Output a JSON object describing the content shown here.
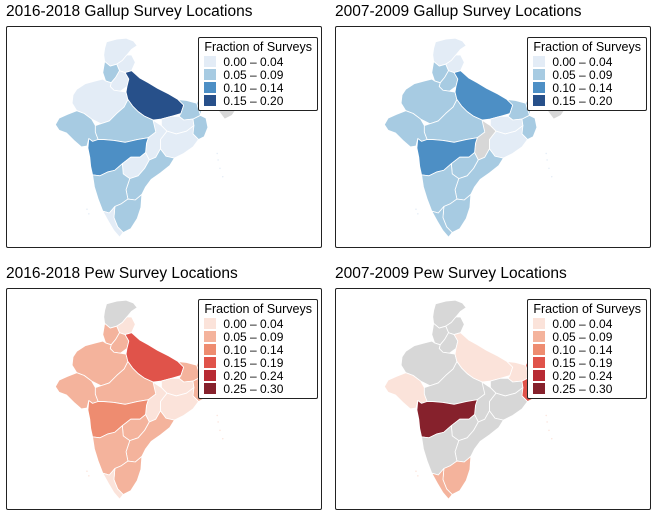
{
  "legend_title": "Fraction of Surveys",
  "no_data_color": "#d7d7d7",
  "map_data": [
    {
      "title": "2016-2018 Gallup Survey Locations",
      "legend": [
        {
          "label": "0.00 – 0.04",
          "color": "#e3ecf6"
        },
        {
          "label": "0.05 – 0.09",
          "color": "#a7cbe2"
        },
        {
          "label": "0.10 – 0.14",
          "color": "#4d8fc5"
        },
        {
          "label": "0.15 – 0.20",
          "color": "#27508a"
        }
      ],
      "regions": {
        "jk": 0,
        "ne": -1,
        "hp": 0,
        "pb": 1,
        "hr": 0,
        "up": 3,
        "rj": 0,
        "gj": 1,
        "mp": 1,
        "bh": 1,
        "wb": 1,
        "jh": 0,
        "od": 0,
        "cg": 0,
        "mh": 2,
        "tg": 0,
        "ap": 1,
        "ka": 1,
        "tn": 1,
        "kl": 0
      }
    },
    {
      "title": "2007-2009 Gallup Survey Locations",
      "legend": [
        {
          "label": "0.00 – 0.04",
          "color": "#e3ecf6"
        },
        {
          "label": "0.05 – 0.09",
          "color": "#a7cbe2"
        },
        {
          "label": "0.10 – 0.14",
          "color": "#4d8fc5"
        },
        {
          "label": "0.15 – 0.20",
          "color": "#27508a"
        }
      ],
      "regions": {
        "jk": 0,
        "ne": -1,
        "hp": 0,
        "pb": 1,
        "hr": 1,
        "up": 2,
        "rj": 1,
        "gj": 1,
        "mp": 1,
        "bh": 1,
        "wb": 1,
        "jh": 0,
        "od": 0,
        "cg": -1,
        "mh": 2,
        "tg": 1,
        "ap": 1,
        "ka": 1,
        "tn": 1,
        "kl": 1
      }
    },
    {
      "title": "2016-2018 Pew Survey Locations",
      "legend": [
        {
          "label": "0.00 – 0.04",
          "color": "#fbe3da"
        },
        {
          "label": "0.05 – 0.09",
          "color": "#f4b39c"
        },
        {
          "label": "0.10 – 0.14",
          "color": "#ee8c70"
        },
        {
          "label": "0.15 – 0.19",
          "color": "#e0534a"
        },
        {
          "label": "0.20 – 0.24",
          "color": "#b82a33"
        },
        {
          "label": "0.25 – 0.30",
          "color": "#86212c"
        }
      ],
      "regions": {
        "jk": -1,
        "ne": 0,
        "hp": 0,
        "pb": 1,
        "hr": 1,
        "up": 3,
        "rj": 1,
        "gj": 1,
        "mp": 1,
        "bh": 1,
        "wb": 1,
        "jh": 0,
        "od": 0,
        "cg": 0,
        "mh": 2,
        "tg": 1,
        "ap": 1,
        "ka": 1,
        "tn": 1,
        "kl": 0
      }
    },
    {
      "title": "2007-2009 Pew Survey Locations",
      "legend": [
        {
          "label": "0.00 – 0.04",
          "color": "#fbe3da"
        },
        {
          "label": "0.05 – 0.09",
          "color": "#f4b39c"
        },
        {
          "label": "0.10 – 0.14",
          "color": "#ee8c70"
        },
        {
          "label": "0.15 – 0.19",
          "color": "#e0534a"
        },
        {
          "label": "0.20 – 0.24",
          "color": "#b82a33"
        },
        {
          "label": "0.25 – 0.30",
          "color": "#86212c"
        }
      ],
      "regions": {
        "jk": -1,
        "ne": -1,
        "hp": -1,
        "pb": -1,
        "hr": -1,
        "up": 0,
        "rj": -1,
        "gj": 0,
        "mp": -1,
        "bh": 0,
        "wb": 3,
        "jh": -1,
        "od": -1,
        "cg": -1,
        "mh": 5,
        "tg": -1,
        "ap": -1,
        "ka": -1,
        "tn": 1,
        "kl": 1
      }
    }
  ]
}
